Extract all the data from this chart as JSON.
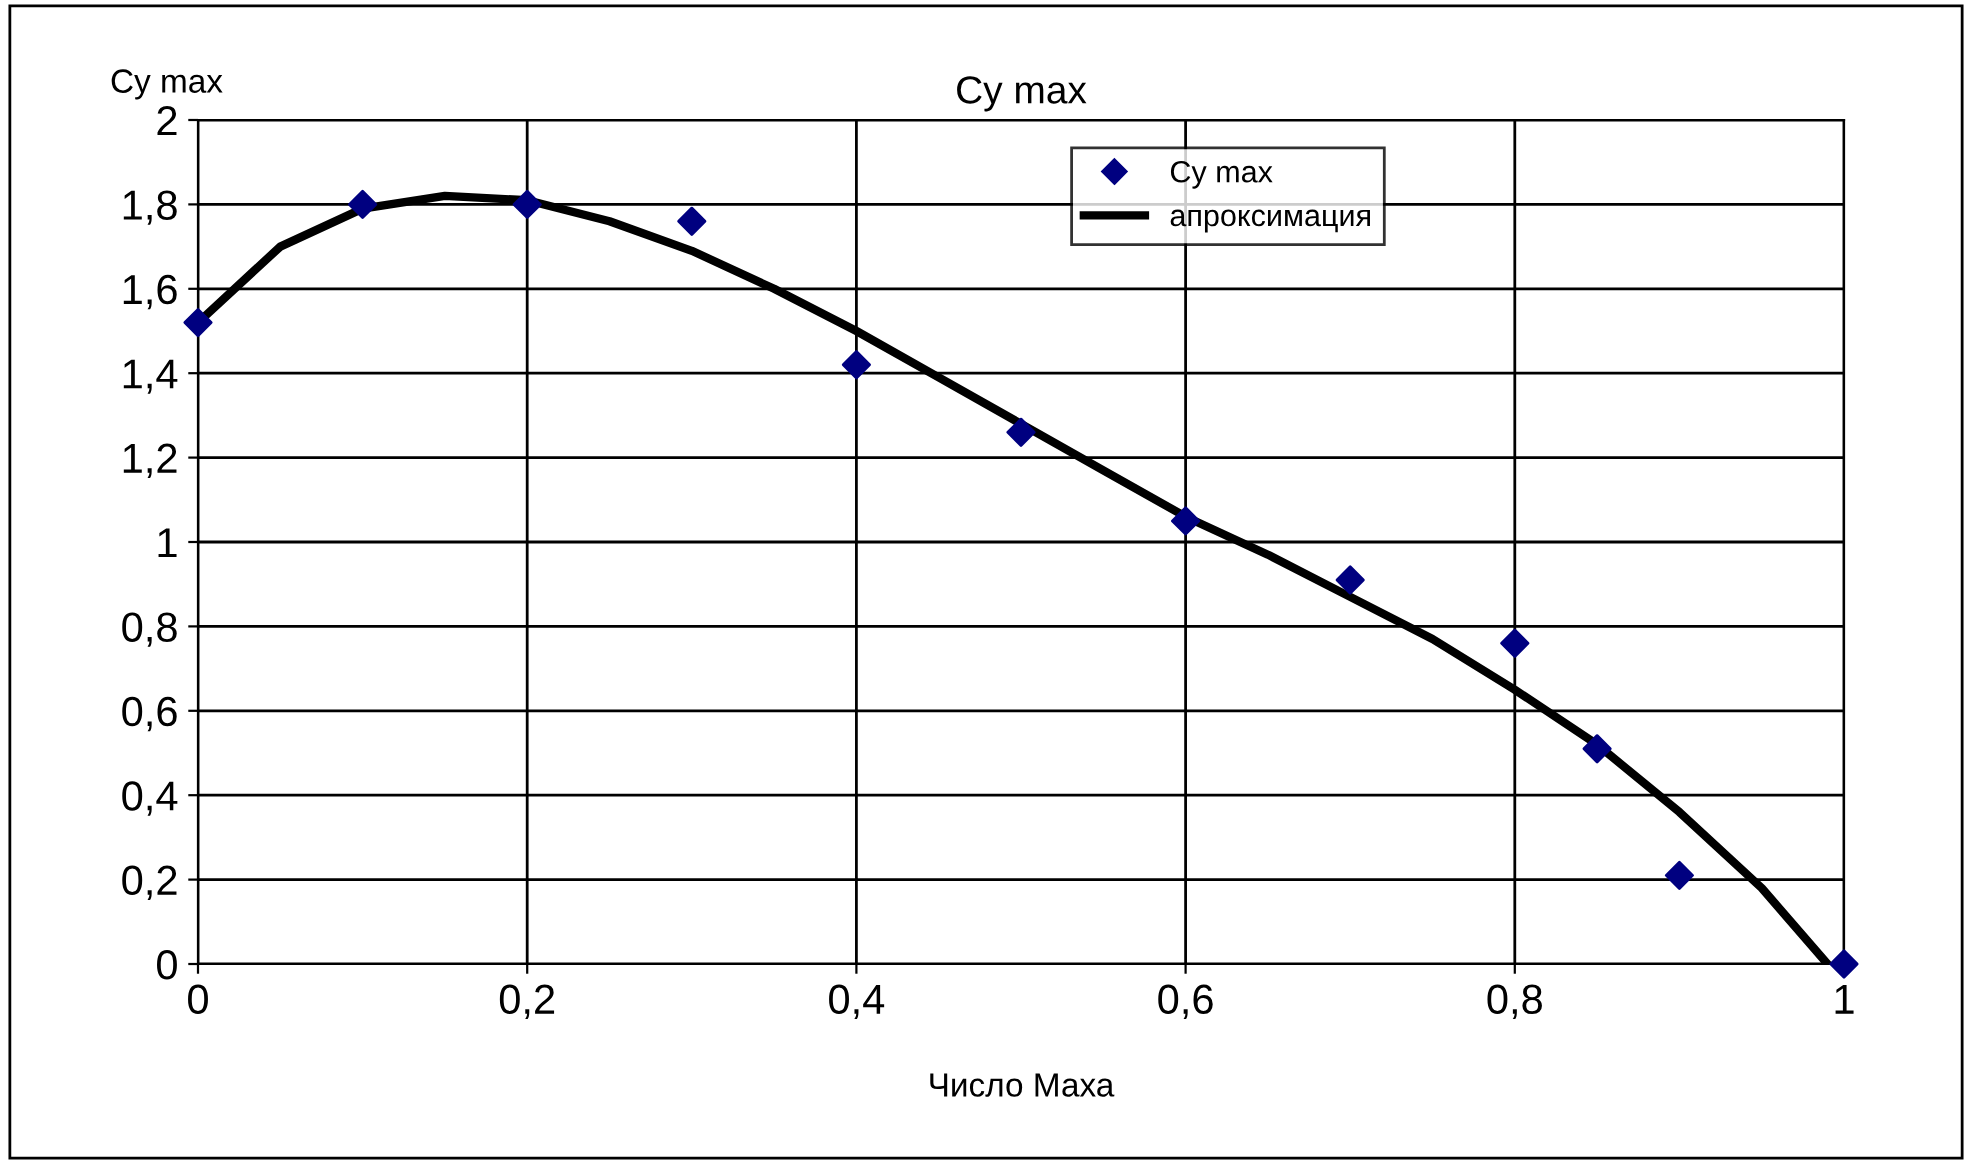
{
  "chart_data": {
    "type": "scatter",
    "title": "Cy max",
    "xlabel": "Число Маха",
    "ylabel": "Cy max",
    "xlim": [
      0,
      1
    ],
    "ylim": [
      0,
      2
    ],
    "xticks": [
      0,
      {
        "value": 0.2,
        "label": "0,2"
      },
      {
        "value": 0.4,
        "label": "0,4"
      },
      {
        "value": 0.6,
        "label": "0,6"
      },
      {
        "value": 0.8,
        "label": "0,8"
      },
      1
    ],
    "yticks": [
      0,
      {
        "value": 0.2,
        "label": "0,2"
      },
      {
        "value": 0.4,
        "label": "0,4"
      },
      {
        "value": 0.6,
        "label": "0,6"
      },
      {
        "value": 0.8,
        "label": "0,8"
      },
      1,
      {
        "value": 1.2,
        "label": "1,2"
      },
      {
        "value": 1.4,
        "label": "1,4"
      },
      {
        "value": 1.6,
        "label": "1,6"
      },
      {
        "value": 1.8,
        "label": "1,8"
      },
      2
    ],
    "grid": true,
    "legend": "top right",
    "series": [
      {
        "name": "Cy max",
        "marker": "diamond",
        "color": "#000080",
        "x": [
          0,
          0.1,
          0.2,
          0.3,
          0.4,
          0.5,
          0.6,
          0.7,
          0.8,
          0.85,
          0.9,
          1.0
        ],
        "values": [
          1.52,
          1.8,
          1.8,
          1.76,
          1.42,
          1.26,
          1.05,
          0.91,
          0.76,
          0.51,
          0.21,
          0.0
        ]
      },
      {
        "name": "апроксимация",
        "type": "line",
        "marker": "none",
        "line_style": "solid",
        "color": "#000000",
        "x": [
          0,
          0.05,
          0.1,
          0.15,
          0.2,
          0.25,
          0.3,
          0.35,
          0.4,
          0.45,
          0.5,
          0.55,
          0.6,
          0.65,
          0.7,
          0.75,
          0.8,
          0.85,
          0.9,
          0.95,
          0.99
        ],
        "values": [
          1.52,
          1.7,
          1.79,
          1.82,
          1.81,
          1.76,
          1.69,
          1.6,
          1.5,
          1.39,
          1.28,
          1.17,
          1.06,
          0.97,
          0.87,
          0.77,
          0.65,
          0.52,
          0.36,
          0.18,
          0.0
        ]
      }
    ]
  }
}
